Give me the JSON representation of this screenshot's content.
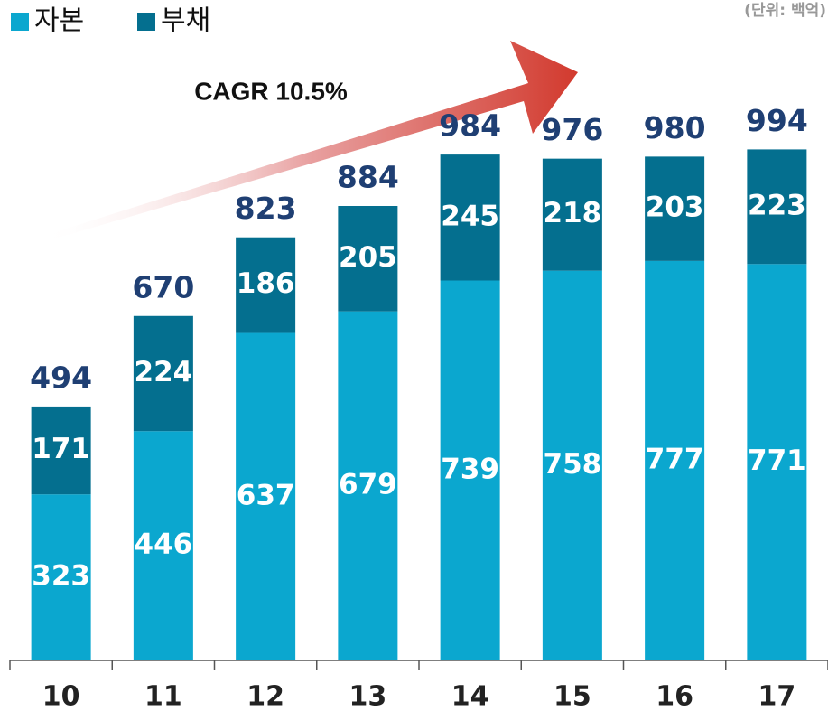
{
  "chart_data": {
    "type": "stacked_bar",
    "subtitle": "(단위: 백억)",
    "annotation": "CAGR 10.5%",
    "categories": [
      "10",
      "11",
      "12",
      "13",
      "14",
      "15",
      "16",
      "17"
    ],
    "series": [
      {
        "name": "자본",
        "color": "#0ba7cf",
        "values": [
          323,
          446,
          637,
          679,
          739,
          758,
          777,
          771
        ]
      },
      {
        "name": "부채",
        "color": "#046f8f",
        "values": [
          171,
          224,
          186,
          205,
          245,
          218,
          203,
          223
        ]
      }
    ],
    "totals": [
      494,
      670,
      823,
      884,
      984,
      976,
      980,
      994
    ],
    "ylim": [
      0,
      1000
    ],
    "legend": "top-left"
  }
}
